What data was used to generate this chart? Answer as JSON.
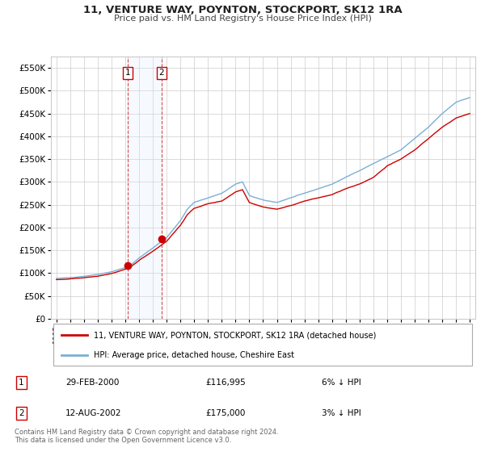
{
  "title": "11, VENTURE WAY, POYNTON, STOCKPORT, SK12 1RA",
  "subtitle": "Price paid vs. HM Land Registry's House Price Index (HPI)",
  "legend_line1": "11, VENTURE WAY, POYNTON, STOCKPORT, SK12 1RA (detached house)",
  "legend_line2": "HPI: Average price, detached house, Cheshire East",
  "transaction1_date": "29-FEB-2000",
  "transaction1_price": "£116,995",
  "transaction1_hpi": "6% ↓ HPI",
  "transaction2_date": "12-AUG-2002",
  "transaction2_price": "£175,000",
  "transaction2_hpi": "3% ↓ HPI",
  "footer": "Contains HM Land Registry data © Crown copyright and database right 2024.\nThis data is licensed under the Open Government Licence v3.0.",
  "ylim": [
    0,
    575000
  ],
  "yticks": [
    0,
    50000,
    100000,
    150000,
    200000,
    250000,
    300000,
    350000,
    400000,
    450000,
    500000,
    550000
  ],
  "color_red": "#cc0000",
  "color_blue": "#7aafd4",
  "color_highlight": "#ddeeff",
  "background_color": "#ffffff",
  "grid_color": "#cccccc",
  "hpi_knots_t": [
    0,
    1,
    2,
    3,
    4,
    5,
    5.5,
    6,
    7,
    8,
    9,
    9.5,
    10,
    11,
    12,
    13,
    13.5,
    14,
    15,
    16,
    17,
    18,
    19,
    20,
    21,
    22,
    23,
    24,
    25,
    26,
    27,
    28,
    29,
    30
  ],
  "hpi_knots_v": [
    88000,
    90000,
    93000,
    97000,
    103000,
    112000,
    120000,
    133000,
    155000,
    178000,
    215000,
    240000,
    255000,
    265000,
    275000,
    295000,
    300000,
    270000,
    260000,
    255000,
    265000,
    275000,
    285000,
    295000,
    310000,
    325000,
    340000,
    355000,
    370000,
    395000,
    420000,
    450000,
    475000,
    485000
  ],
  "red_knots_t": [
    0,
    1,
    2,
    3,
    4,
    5,
    5.5,
    6,
    7,
    8,
    9,
    9.5,
    10,
    11,
    12,
    13,
    13.5,
    14,
    15,
    16,
    17,
    18,
    19,
    20,
    21,
    22,
    23,
    24,
    25,
    26,
    27,
    28,
    29,
    30
  ],
  "red_knots_v": [
    85000,
    87000,
    90000,
    93000,
    99000,
    108000,
    116000,
    128000,
    148000,
    170000,
    205000,
    228000,
    242000,
    252000,
    258000,
    278000,
    283000,
    255000,
    245000,
    240000,
    248000,
    258000,
    265000,
    272000,
    285000,
    295000,
    310000,
    335000,
    350000,
    370000,
    395000,
    420000,
    440000,
    450000
  ]
}
